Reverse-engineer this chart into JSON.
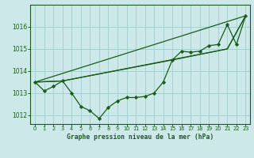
{
  "title": "Graphe pression niveau de la mer (hPa)",
  "bg_color": "#cce8e8",
  "grid_color": "#a8d0d0",
  "line_color": "#1a5c1a",
  "marker_color": "#1a5c1a",
  "xlim": [
    -0.5,
    23.5
  ],
  "ylim": [
    1011.6,
    1017.0
  ],
  "yticks": [
    1012,
    1013,
    1014,
    1015,
    1016
  ],
  "xticks": [
    0,
    1,
    2,
    3,
    4,
    5,
    6,
    7,
    8,
    9,
    10,
    11,
    12,
    13,
    14,
    15,
    16,
    17,
    18,
    19,
    20,
    21,
    22,
    23
  ],
  "series1_x": [
    0,
    1,
    2,
    3,
    4,
    5,
    6,
    7,
    8,
    9,
    10,
    11,
    12,
    13,
    14,
    15,
    16,
    17,
    18,
    19,
    20,
    21,
    22,
    23
  ],
  "series1_y": [
    1013.5,
    1013.1,
    1013.3,
    1013.55,
    1013.0,
    1012.4,
    1012.2,
    1011.85,
    1012.35,
    1012.65,
    1012.8,
    1012.8,
    1012.85,
    1013.0,
    1013.5,
    1014.5,
    1014.9,
    1014.85,
    1014.9,
    1015.15,
    1015.2,
    1016.1,
    1015.2,
    1016.5
  ],
  "series2_x": [
    0,
    23
  ],
  "series2_y": [
    1013.5,
    1016.5
  ],
  "series3_x": [
    0,
    3,
    21,
    23
  ],
  "series3_y": [
    1013.5,
    1013.55,
    1015.0,
    1016.5
  ],
  "series4_x": [
    0,
    3,
    15,
    21,
    23
  ],
  "series4_y": [
    1013.5,
    1013.55,
    1014.5,
    1015.0,
    1016.5
  ]
}
